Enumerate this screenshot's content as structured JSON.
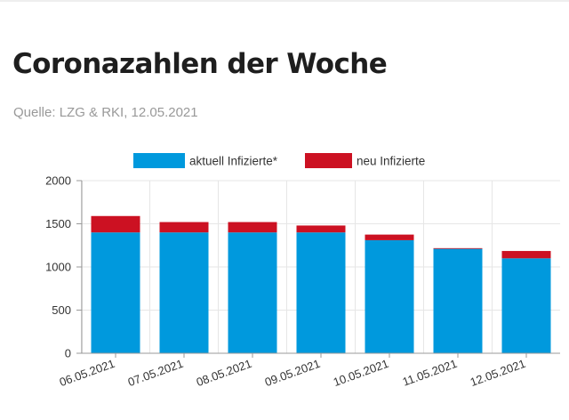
{
  "header": {
    "title": "Coronazahlen der Woche",
    "source": "Quelle: LZG & RKI, 12.05.2021"
  },
  "colors": {
    "series_1": "#0099dd",
    "series_2": "#cc1122",
    "grid": "#e6e6e6",
    "axis": "#999999"
  },
  "chart_data": {
    "type": "bar",
    "stacked": true,
    "categories": [
      "06.05.2021",
      "07.05.2021",
      "08.05.2021",
      "09.05.2021",
      "10.05.2021",
      "11.05.2021",
      "12.05.2021"
    ],
    "series": [
      {
        "name": "aktuell Infizierte*",
        "values": [
          1400,
          1400,
          1400,
          1400,
          1310,
          1210,
          1100
        ]
      },
      {
        "name": "neu Infizierte",
        "values": [
          190,
          120,
          120,
          80,
          65,
          8,
          85
        ]
      }
    ],
    "ylim": [
      0,
      2000
    ],
    "yticks": [
      "0",
      "500",
      "1000",
      "1500",
      "2000"
    ],
    "grid": true,
    "legend": "top-center"
  }
}
